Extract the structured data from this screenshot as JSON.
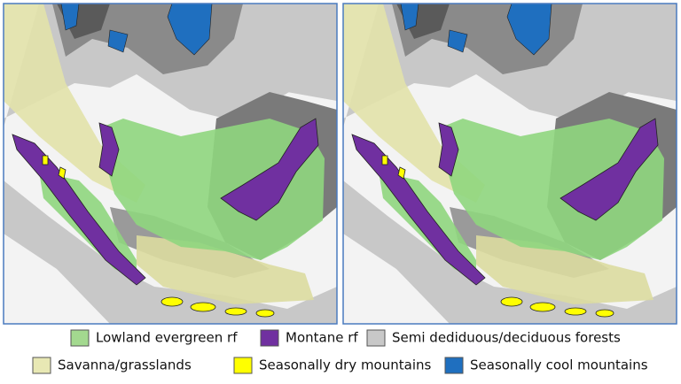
{
  "legend": {
    "items": [
      {
        "label": "Lowland evergreen rf"
      },
      {
        "label": "Montane rf"
      },
      {
        "label": "Semi dediduous/deciduous forests"
      },
      {
        "label": "Savanna/grasslands"
      },
      {
        "label": "Seasonally dry mountains"
      },
      {
        "label": "Seasonally cool mountains"
      }
    ]
  }
}
